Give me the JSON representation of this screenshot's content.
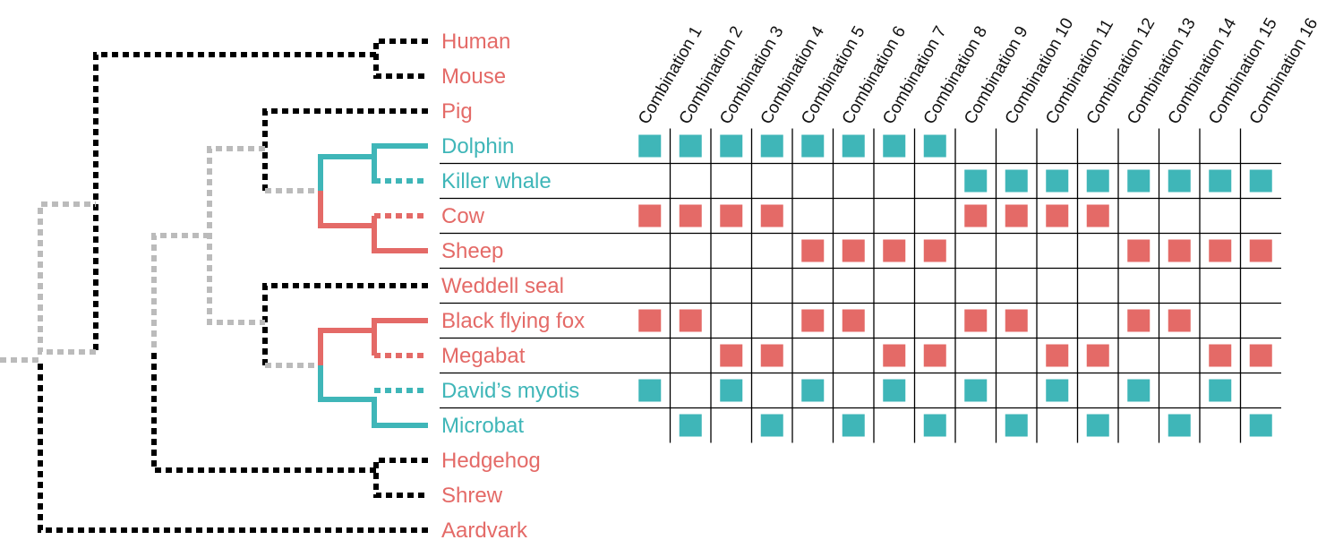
{
  "colors": {
    "pink": "#e46a67",
    "teal": "#3fb6b8",
    "black": "#000000",
    "gray": "#bbbbbb",
    "grid": "#000000"
  },
  "taxa": [
    {
      "name": "Human",
      "color": "pink"
    },
    {
      "name": "Mouse",
      "color": "pink"
    },
    {
      "name": "Pig",
      "color": "pink"
    },
    {
      "name": "Dolphin",
      "color": "teal"
    },
    {
      "name": "Killer whale",
      "color": "teal"
    },
    {
      "name": "Cow",
      "color": "pink"
    },
    {
      "name": "Sheep",
      "color": "pink"
    },
    {
      "name": "Weddell seal",
      "color": "pink"
    },
    {
      "name": "Black flying fox",
      "color": "pink"
    },
    {
      "name": "Megabat",
      "color": "pink"
    },
    {
      "name": "David’s myotis",
      "color": "teal"
    },
    {
      "name": "Microbat",
      "color": "teal"
    },
    {
      "name": "Hedgehog",
      "color": "pink"
    },
    {
      "name": "Shrew",
      "color": "pink"
    },
    {
      "name": "Aardvark",
      "color": "pink"
    }
  ],
  "combinations": [
    "Combination 1",
    "Combination 2",
    "Combination 3",
    "Combination 4",
    "Combination 5",
    "Combination 6",
    "Combination 7",
    "Combination 8",
    "Combination 9",
    "Combination 10",
    "Combination 11",
    "Combination 12",
    "Combination 13",
    "Combination 14",
    "Combination 15",
    "Combination 16"
  ],
  "matrix_rows": [
    {
      "taxon": "Dolphin",
      "color": "teal",
      "present": [
        1,
        1,
        1,
        1,
        1,
        1,
        1,
        1,
        0,
        0,
        0,
        0,
        0,
        0,
        0,
        0
      ]
    },
    {
      "taxon": "Killer whale",
      "color": "teal",
      "present": [
        0,
        0,
        0,
        0,
        0,
        0,
        0,
        0,
        1,
        1,
        1,
        1,
        1,
        1,
        1,
        1
      ]
    },
    {
      "taxon": "Cow",
      "color": "pink",
      "present": [
        1,
        1,
        1,
        1,
        0,
        0,
        0,
        0,
        1,
        1,
        1,
        1,
        0,
        0,
        0,
        0
      ]
    },
    {
      "taxon": "Sheep",
      "color": "pink",
      "present": [
        0,
        0,
        0,
        0,
        1,
        1,
        1,
        1,
        0,
        0,
        0,
        0,
        1,
        1,
        1,
        1
      ]
    },
    {
      "taxon": "Weddell seal",
      "color": "pink",
      "present": [
        0,
        0,
        0,
        0,
        0,
        0,
        0,
        0,
        0,
        0,
        0,
        0,
        0,
        0,
        0,
        0
      ]
    },
    {
      "taxon": "Black flying fox",
      "color": "pink",
      "present": [
        1,
        1,
        0,
        0,
        1,
        1,
        0,
        0,
        1,
        1,
        0,
        0,
        1,
        1,
        0,
        0
      ]
    },
    {
      "taxon": "Megabat",
      "color": "pink",
      "present": [
        0,
        0,
        1,
        1,
        0,
        0,
        1,
        1,
        0,
        0,
        1,
        1,
        0,
        0,
        1,
        1
      ]
    },
    {
      "taxon": "David’s myotis",
      "color": "teal",
      "present": [
        1,
        0,
        1,
        0,
        1,
        0,
        1,
        0,
        1,
        0,
        1,
        0,
        1,
        0,
        1,
        0
      ]
    },
    {
      "taxon": "Microbat",
      "color": "teal",
      "present": [
        0,
        1,
        0,
        1,
        0,
        1,
        0,
        1,
        0,
        1,
        0,
        1,
        0,
        1,
        0,
        1
      ]
    }
  ]
}
